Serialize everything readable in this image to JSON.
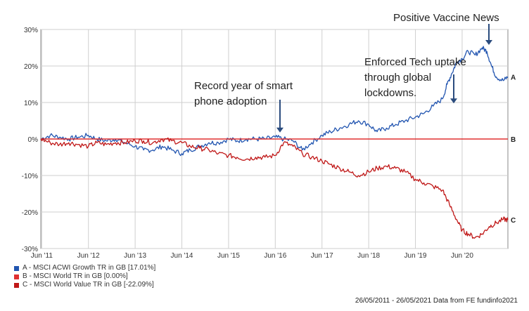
{
  "chart_data": {
    "type": "line",
    "title": "",
    "xlabel": "",
    "ylabel": "",
    "ylim": [
      -30,
      30
    ],
    "y_ticks": [
      30,
      20,
      10,
      0,
      -10,
      -20,
      -30
    ],
    "y_tick_labels": [
      "30%",
      "20%",
      "10%",
      "0%",
      "-10%",
      "-20%",
      "-30%"
    ],
    "x_tick_labels": [
      "Jun '11",
      "Jun '12",
      "Jun '13",
      "Jun '14",
      "Jun '15",
      "Jun '16",
      "Jun '17",
      "Jun '18",
      "Jun '19",
      "Jun '20"
    ],
    "x_ticks_years": [
      2011.42,
      2012.42,
      2013.42,
      2014.42,
      2015.42,
      2016.42,
      2017.42,
      2018.42,
      2019.42,
      2020.42
    ],
    "x_range_years": [
      2011.4,
      2021.4
    ],
    "grid": true,
    "legend_position": "bottom-left",
    "series": [
      {
        "name": "A - MSCI ACWI Growth TR in GB [17.01%]",
        "end_label": "A",
        "color": "#2255b0",
        "x": [
          2011.4,
          2011.6,
          2011.8,
          2012.0,
          2012.2,
          2012.42,
          2012.6,
          2012.8,
          2013.0,
          2013.2,
          2013.42,
          2013.6,
          2013.8,
          2014.0,
          2014.2,
          2014.42,
          2014.6,
          2014.8,
          2015.0,
          2015.2,
          2015.42,
          2015.6,
          2015.8,
          2016.0,
          2016.2,
          2016.42,
          2016.6,
          2016.8,
          2017.0,
          2017.2,
          2017.42,
          2017.6,
          2017.8,
          2018.0,
          2018.2,
          2018.42,
          2018.6,
          2018.8,
          2019.0,
          2019.2,
          2019.42,
          2019.6,
          2019.8,
          2020.0,
          2020.1,
          2020.2,
          2020.3,
          2020.42,
          2020.55,
          2020.7,
          2020.85,
          2020.95,
          2021.05,
          2021.15,
          2021.3,
          2021.4
        ],
        "values": [
          0.0,
          1.0,
          0.5,
          0.0,
          0.5,
          1.0,
          0.0,
          -0.5,
          0.0,
          -1.0,
          -2.0,
          -3.0,
          -3.0,
          -2.0,
          -3.0,
          -4.0,
          -3.0,
          -2.0,
          -1.0,
          -1.0,
          0.0,
          -0.5,
          0.0,
          0.0,
          0.0,
          0.5,
          0.0,
          -0.5,
          -3.0,
          -1.0,
          1.0,
          2.0,
          3.0,
          4.0,
          5.0,
          4.0,
          2.0,
          3.0,
          4.0,
          5.0,
          6.0,
          7.0,
          9.0,
          11.0,
          15.0,
          18.0,
          21.0,
          22.0,
          24.0,
          23.0,
          25.0,
          24.0,
          20.0,
          17.0,
          16.0,
          17.0
        ]
      },
      {
        "name": "B - MSCI World TR in GB [0.00%]",
        "end_label": "B",
        "color": "#e03030",
        "x": [
          2011.4,
          2021.4
        ],
        "values": [
          0.0,
          0.0
        ]
      },
      {
        "name": "C - MSCI World Value TR in GB [-22.09%]",
        "end_label": "C",
        "color": "#c01818",
        "x": [
          2011.4,
          2011.6,
          2011.8,
          2012.0,
          2012.2,
          2012.42,
          2012.6,
          2012.8,
          2013.0,
          2013.2,
          2013.42,
          2013.6,
          2013.8,
          2014.0,
          2014.2,
          2014.42,
          2014.6,
          2014.8,
          2015.0,
          2015.2,
          2015.42,
          2015.6,
          2015.8,
          2016.0,
          2016.2,
          2016.42,
          2016.6,
          2016.8,
          2017.0,
          2017.2,
          2017.42,
          2017.6,
          2017.8,
          2018.0,
          2018.2,
          2018.42,
          2018.6,
          2018.8,
          2019.0,
          2019.2,
          2019.42,
          2019.6,
          2019.8,
          2020.0,
          2020.15,
          2020.3,
          2020.42,
          2020.55,
          2020.7,
          2020.85,
          2021.0,
          2021.15,
          2021.3,
          2021.4
        ],
        "values": [
          0.0,
          -1.0,
          -1.5,
          -1.0,
          -1.5,
          -2.0,
          -1.0,
          -1.5,
          -1.0,
          -1.0,
          -0.5,
          -0.5,
          -1.0,
          0.0,
          -0.5,
          -1.0,
          -2.0,
          -2.5,
          -3.0,
          -4.0,
          -4.5,
          -5.0,
          -5.5,
          -5.0,
          -5.0,
          -4.5,
          -1.0,
          -2.0,
          -4.0,
          -5.0,
          -6.0,
          -7.0,
          -8.0,
          -9.0,
          -10.0,
          -9.0,
          -8.0,
          -7.5,
          -8.0,
          -9.0,
          -11.0,
          -12.0,
          -13.0,
          -14.0,
          -18.0,
          -22.0,
          -25.0,
          -26.0,
          -27.0,
          -26.0,
          -24.0,
          -23.0,
          -22.0,
          -22.1
        ]
      }
    ],
    "annotations": [
      {
        "lines": [
          "Positive Vaccine News"
        ],
        "target": [
          2020.6,
          25.0
        ]
      },
      {
        "lines": [
          "Enforced Tech uptake",
          "through global",
          "lockdowns."
        ],
        "target": [
          2019.6,
          9.0
        ]
      },
      {
        "lines": [
          "Record year of smart",
          "phone adoption"
        ],
        "target": [
          2016.0,
          1.0
        ]
      }
    ]
  },
  "footer": "26/05/2011 - 26/05/2021 Data from FE fundinfo2021"
}
